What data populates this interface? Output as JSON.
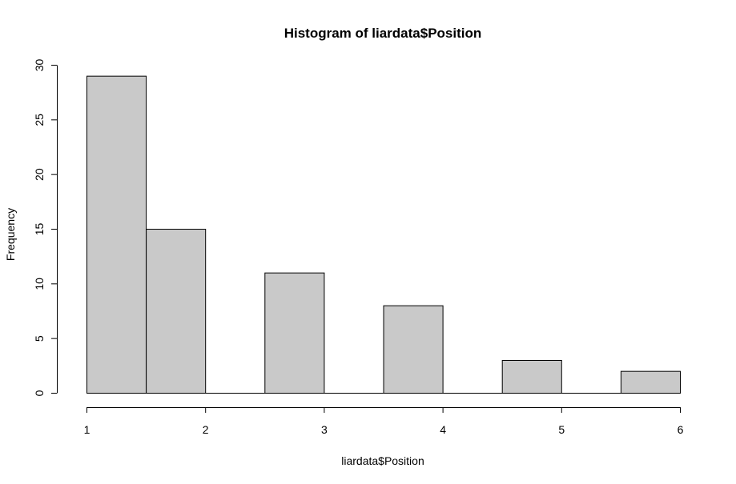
{
  "chart_data": {
    "type": "bar",
    "title": "Histogram of liardata$Position",
    "xlabel": "liardata$Position",
    "ylabel": "Frequency",
    "bins": [
      {
        "start": 1.0,
        "end": 1.5,
        "count": 29
      },
      {
        "start": 1.5,
        "end": 2.0,
        "count": 15
      },
      {
        "start": 2.0,
        "end": 2.5,
        "count": 0
      },
      {
        "start": 2.5,
        "end": 3.0,
        "count": 11
      },
      {
        "start": 3.0,
        "end": 3.5,
        "count": 0
      },
      {
        "start": 3.5,
        "end": 4.0,
        "count": 8
      },
      {
        "start": 4.0,
        "end": 4.5,
        "count": 0
      },
      {
        "start": 4.5,
        "end": 5.0,
        "count": 3
      },
      {
        "start": 5.0,
        "end": 5.5,
        "count": 0
      },
      {
        "start": 5.5,
        "end": 6.0,
        "count": 2
      }
    ],
    "xlim": [
      1,
      6
    ],
    "ylim": [
      0,
      30
    ],
    "x_ticks": [
      1,
      2,
      3,
      4,
      5,
      6
    ],
    "y_ticks": [
      0,
      5,
      10,
      15,
      20,
      25,
      30
    ],
    "grid": false,
    "colors": {
      "bar_fill": "#c9c9c9",
      "bar_stroke": "#000000"
    }
  }
}
